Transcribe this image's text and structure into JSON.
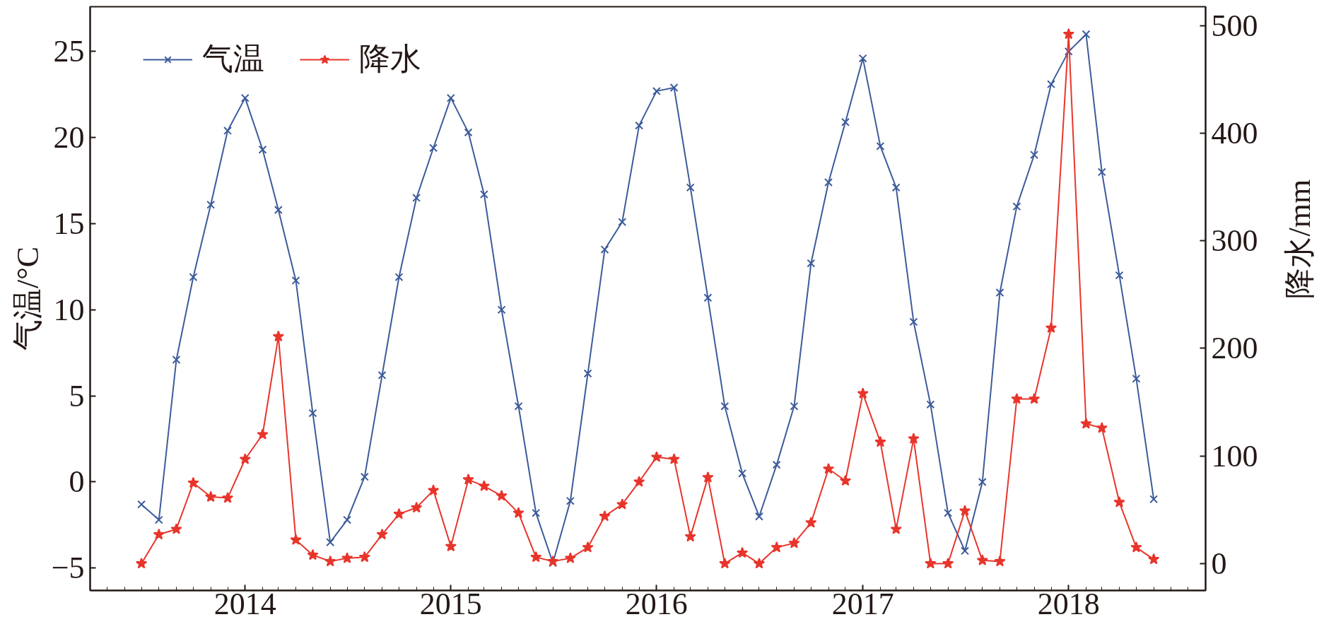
{
  "chart_data": {
    "type": "line",
    "x": [
      "2013-07",
      "2013-08",
      "2013-09",
      "2013-10",
      "2013-11",
      "2013-12",
      "2014-01",
      "2014-02",
      "2014-03",
      "2014-04",
      "2014-05",
      "2014-06",
      "2014-07",
      "2014-08",
      "2014-09",
      "2014-10",
      "2014-11",
      "2014-12",
      "2015-01",
      "2015-02",
      "2015-03",
      "2015-04",
      "2015-05",
      "2015-06",
      "2015-07",
      "2015-08",
      "2015-09",
      "2015-10",
      "2015-11",
      "2015-12",
      "2016-01",
      "2016-02",
      "2016-03",
      "2016-04",
      "2016-05",
      "2016-06",
      "2016-07",
      "2016-08",
      "2016-09",
      "2016-10",
      "2016-11",
      "2016-12",
      "2017-01",
      "2017-02",
      "2017-03",
      "2017-04",
      "2017-05",
      "2017-06",
      "2017-07",
      "2017-08",
      "2017-09",
      "2017-10",
      "2017-11",
      "2017-12",
      "2018-01",
      "2018-02",
      "2018-03",
      "2018-04",
      "2018-05",
      "2018-06"
    ],
    "xlim": [
      "2013-04",
      "2018-09"
    ],
    "xticks": [
      "2014",
      "2015",
      "2016",
      "2017",
      "2018"
    ],
    "ylabel": "气温/°C",
    "ylim": [
      -6.3,
      27.6
    ],
    "yticks": [
      -5,
      0,
      5,
      10,
      15,
      20,
      25
    ],
    "y2label": "降水/mm",
    "y2lim": [
      -25,
      517.5
    ],
    "y2ticks": [
      0,
      100,
      200,
      300,
      400,
      500
    ],
    "series": [
      {
        "name": "气温",
        "color": "#3c5b9a",
        "marker": "cross",
        "values": [
          -1.3,
          -2.2,
          7.1,
          11.9,
          16.1,
          20.4,
          22.3,
          19.3,
          15.8,
          11.7,
          4.0,
          -3.5,
          -2.2,
          0.3,
          6.2,
          11.9,
          16.5,
          19.4,
          22.3,
          20.3,
          16.7,
          10.0,
          4.4,
          -1.8,
          -4.7,
          -1.1,
          6.3,
          13.5,
          15.1,
          20.7,
          22.7,
          22.9,
          17.1,
          10.7,
          4.4,
          0.5,
          -2.0,
          1.0,
          4.4,
          12.7,
          17.4,
          20.9,
          24.6,
          19.5,
          17.1,
          9.3,
          4.5,
          -1.8,
          -4.0,
          0.0,
          11.0,
          16.0,
          19.0,
          23.1,
          25.0,
          26.0,
          18.0,
          12.0,
          6.0,
          -1.0
        ]
      },
      {
        "name": "降水",
        "color": "#e8352b",
        "marker": "star",
        "axis": "y2",
        "values": [
          0,
          27,
          32,
          75,
          62,
          61,
          97,
          120,
          211,
          22,
          8,
          2,
          5,
          6,
          27,
          46,
          52,
          68,
          16,
          78,
          72,
          63,
          47,
          6,
          2,
          5,
          15,
          44,
          55,
          76,
          99,
          97,
          25,
          80,
          0,
          10,
          0,
          15,
          19,
          38,
          88,
          77,
          158,
          113,
          32,
          116,
          0,
          0,
          49,
          3,
          2,
          153,
          153,
          219,
          492,
          130,
          126,
          57,
          15,
          4
        ]
      }
    ],
    "line_style": "solid",
    "legend": "top left"
  }
}
